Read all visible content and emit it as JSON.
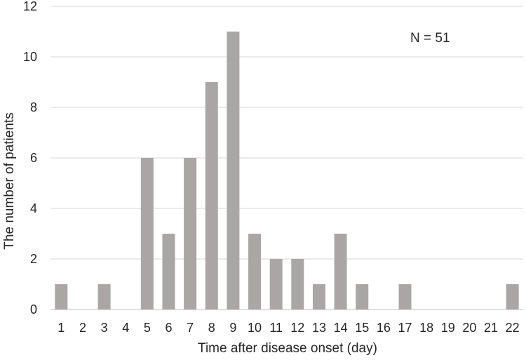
{
  "chart_data": {
    "type": "bar",
    "title": "",
    "xlabel": "Time after disease onset (day)",
    "ylabel": "The number of patients",
    "annotation": "N = 51",
    "categories": [
      "1",
      "2",
      "3",
      "4",
      "5",
      "6",
      "7",
      "8",
      "9",
      "10",
      "11",
      "12",
      "13",
      "14",
      "15",
      "16",
      "17",
      "18",
      "19",
      "20",
      "21",
      "22"
    ],
    "values": [
      1,
      0,
      1,
      0,
      6,
      3,
      6,
      9,
      11,
      3,
      2,
      2,
      1,
      3,
      1,
      0,
      1,
      0,
      0,
      0,
      0,
      1
    ],
    "ylim": [
      0,
      12
    ],
    "yticks": [
      "0",
      "2",
      "4",
      "6",
      "8",
      "10",
      "12"
    ],
    "grid": true,
    "colors": {
      "bar": "#aaa6a6",
      "grid": "#d4d4d4",
      "text": "#262626"
    }
  }
}
